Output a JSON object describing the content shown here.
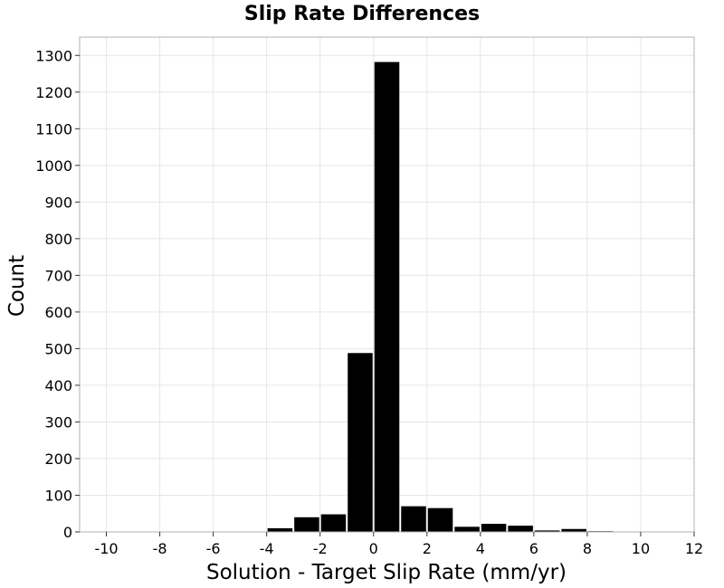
{
  "chart_data": {
    "type": "bar",
    "title": "Slip Rate Differences",
    "xlabel": "Solution - Target Slip Rate (mm/yr)",
    "ylabel": "Count",
    "xlim": [
      -11,
      12
    ],
    "ylim": [
      0,
      1350
    ],
    "xticks": [
      -10,
      -8,
      -6,
      -4,
      -2,
      0,
      2,
      4,
      6,
      8,
      10,
      12
    ],
    "yticks": [
      0,
      100,
      200,
      300,
      400,
      500,
      600,
      700,
      800,
      900,
      1000,
      1100,
      1200,
      1300
    ],
    "grid": true,
    "bar_color": "#000000",
    "bins": [
      {
        "start": -4,
        "end": -3,
        "count": 10
      },
      {
        "start": -3,
        "end": -2,
        "count": 40
      },
      {
        "start": -2,
        "end": -1,
        "count": 48
      },
      {
        "start": -1,
        "end": 0,
        "count": 488
      },
      {
        "start": 0,
        "end": 1,
        "count": 1282
      },
      {
        "start": 1,
        "end": 2,
        "count": 70
      },
      {
        "start": 2,
        "end": 3,
        "count": 65
      },
      {
        "start": 3,
        "end": 4,
        "count": 14
      },
      {
        "start": 4,
        "end": 5,
        "count": 22
      },
      {
        "start": 5,
        "end": 6,
        "count": 17
      },
      {
        "start": 6,
        "end": 7,
        "count": 4
      },
      {
        "start": 7,
        "end": 8,
        "count": 8
      },
      {
        "start": 8,
        "end": 9,
        "count": 2
      },
      {
        "start": 9,
        "end": 10,
        "count": 1
      }
    ]
  }
}
